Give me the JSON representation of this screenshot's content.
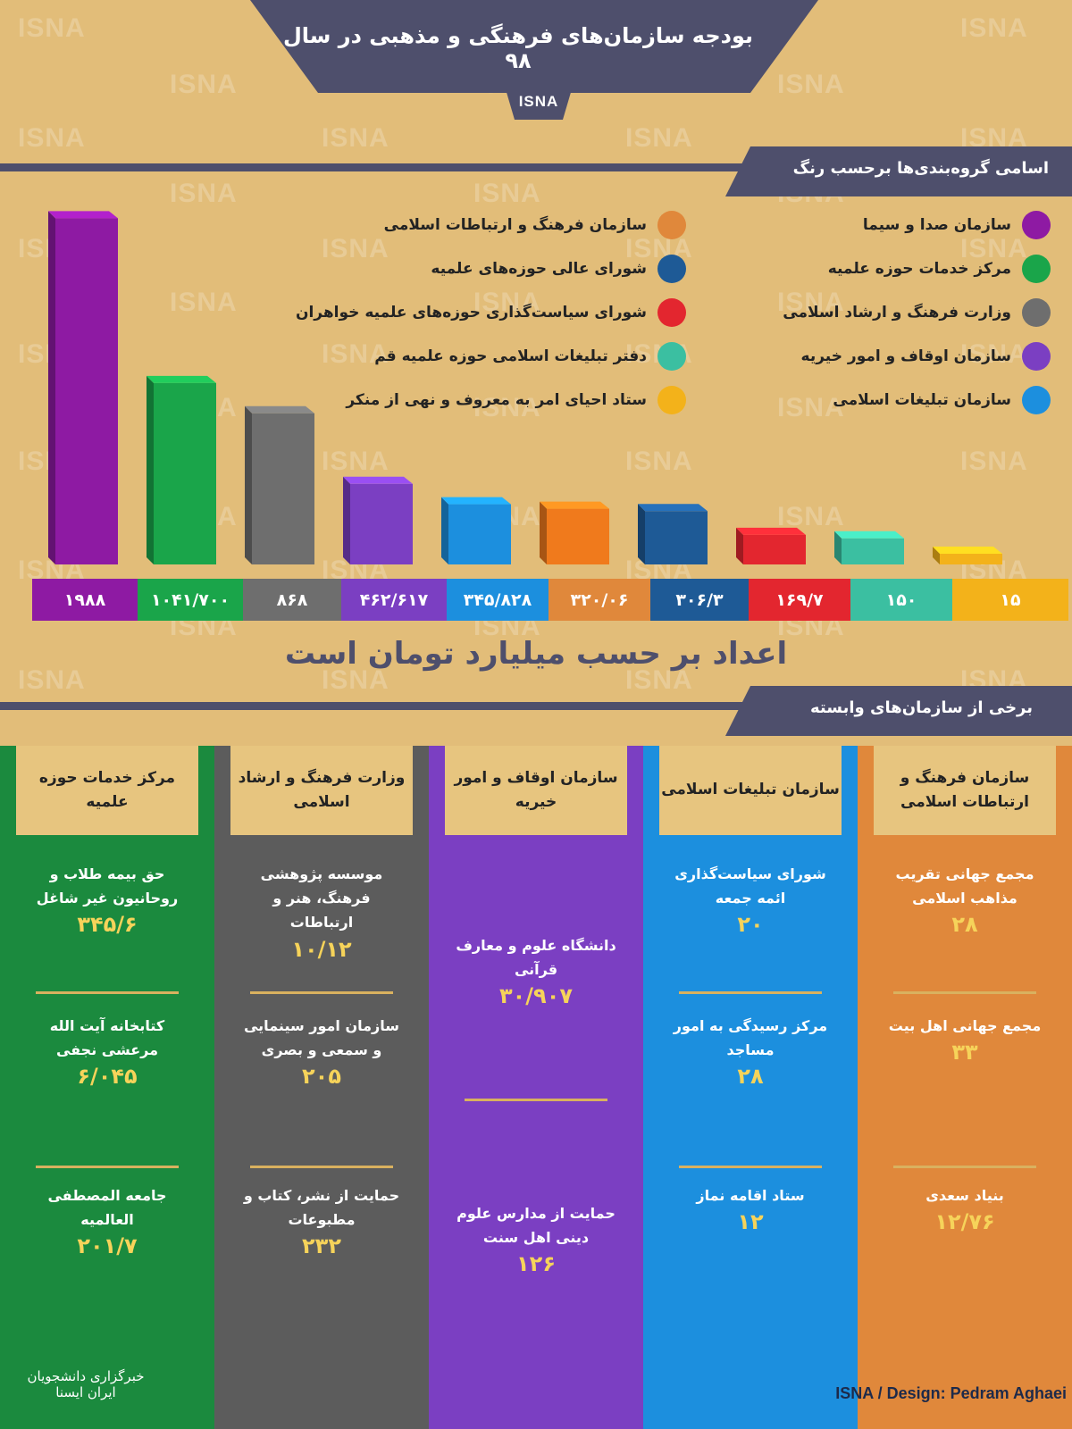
{
  "title": "بودجه سازمان‌های فرهنگی و مذهبی در سال ۹۸",
  "agency": "ISNA",
  "watermark": "ISNA",
  "legend_header": "اسامی گروه‌بندی‌ها برحسب رنگ",
  "legend": [
    {
      "label": "سازمان صدا و سیما",
      "color": "#8e1aa3"
    },
    {
      "label": "مرکز خدمات حوزه علمیه",
      "color": "#1aa54a"
    },
    {
      "label": "وزارت فرهنگ و ارشاد اسلامی",
      "color": "#6e6e6e"
    },
    {
      "label": "سازمان اوقاف و امور خیریه",
      "color": "#7b3fc2"
    },
    {
      "label": "سازمان تبلیغات اسلامی",
      "color": "#1c8fde"
    },
    {
      "label": "سازمان فرهنگ و ارتباطات اسلامی",
      "color": "#e0883b"
    },
    {
      "label": "شورای عالی حوزه‌های علمیه",
      "color": "#1e5a96"
    },
    {
      "label": "شورای سیاست‌گذاری حوزه‌های علمیه خواهران",
      "color": "#e3262f"
    },
    {
      "label": "دفتر تبلیغات اسلامی حوزه علمیه قم",
      "color": "#3bbfa1"
    },
    {
      "label": "ستاد احیای امر به معروف و نهی از منکر",
      "color": "#f3b21a"
    }
  ],
  "chart_data": {
    "type": "bar",
    "categories": [
      "سازمان صدا و سیما",
      "مرکز خدمات حوزه علمیه",
      "وزارت فرهنگ و ارشاد اسلامی",
      "سازمان اوقاف و امور خیریه",
      "سازمان تبلیغات اسلامی",
      "سازمان فرهنگ و ارتباطات اسلامی",
      "شورای عالی حوزه‌های علمیه",
      "شورای سیاست‌گذاری حوزه‌های علمیه خواهران",
      "دفتر تبلیغات اسلامی حوزه علمیه قم",
      "ستاد احیای امر به معروف و نهی از منکر"
    ],
    "values": [
      1988,
      1041.7,
      868,
      462.617,
      345.828,
      320.06,
      306.3,
      169.7,
      150,
      15
    ],
    "value_labels": [
      "۱۹۸۸",
      "۱۰۴۱/۷۰۰",
      "۸۶۸",
      "۴۶۲/۶۱۷",
      "۳۴۵/۸۲۸",
      "۳۲۰/۰۶",
      "۳۰۶/۳",
      "۱۶۹/۷",
      "۱۵۰",
      "۱۵"
    ],
    "colors": [
      "#8e1aa3",
      "#1aa54a",
      "#6e6e6e",
      "#7b3fc2",
      "#1c8fde",
      "#f07a1c",
      "#1e5a96",
      "#e3262f",
      "#3bbfa1",
      "#f3b21a"
    ],
    "strip_colors": [
      "#8e1aa3",
      "#1aa54a",
      "#6e6e6e",
      "#7b3fc2",
      "#1c8fde",
      "#e0883b",
      "#1e5a96",
      "#e3262f",
      "#3bbfa1",
      "#f3b21a"
    ],
    "unit_note": "اعداد بر حسب میلیارد تومان است"
  },
  "sub_header": "برخی از سازمان‌های وابسته",
  "columns": [
    {
      "title": "سازمان فرهنگ و ارتباطات اسلامی",
      "color": "#e0883b",
      "items": [
        {
          "label": "مجمع جهانی تقریب مذاهب اسلامی",
          "value": "۲۸"
        },
        {
          "label": "مجمع جهانی اهل بیت",
          "value": "۳۳"
        },
        {
          "label": "بنیاد سعدی",
          "value": "۱۲/۷۶"
        }
      ]
    },
    {
      "title": "سازمان تبلیغات اسلامی",
      "color": "#1c8fde",
      "items": [
        {
          "label": "شورای سیاست‌گذاری ائمه جمعه",
          "value": "۲۰"
        },
        {
          "label": "مرکز رسیدگی به امور مساجد",
          "value": "۲۸"
        },
        {
          "label": "ستاد اقامه نماز",
          "value": "۱۲"
        }
      ]
    },
    {
      "title": "سازمان اوقاف و امور خیریه",
      "color": "#7b3fc2",
      "items": [
        {
          "label": "دانشگاه علوم و معارف قرآنی",
          "value": "۳۰/۹۰۷"
        },
        {
          "label": "حمایت از مدارس علوم دینی اهل سنت",
          "value": "۱۲۶"
        }
      ]
    },
    {
      "title": "وزارت فرهنگ و ارشاد اسلامی",
      "color": "#5c5c5c",
      "items": [
        {
          "label": "موسسه پژوهشی فرهنگ، هنر و ارتباطات",
          "value": "۱۰/۱۲"
        },
        {
          "label": "سازمان امور سینمایی و سمعی و بصری",
          "value": "۲۰۵"
        },
        {
          "label": "حمایت از نشر، کتاب و مطبوعات",
          "value": "۲۳۲"
        }
      ]
    },
    {
      "title": "مرکز خدمات حوزه علمیه",
      "color": "#1b8a3e",
      "items": [
        {
          "label": "حق بیمه طلاب و روحانیون غیر شاغل",
          "value": "۳۴۵/۶"
        },
        {
          "label": "کتابخانه آیت الله مرعشی نجفی",
          "value": "۶/۰۴۵"
        },
        {
          "label": "جامعه المصطفی العالمیه",
          "value": "۲۰۱/۷"
        }
      ]
    }
  ],
  "logo_text": "خبرگزاری دانشجویان ایران ایسنا",
  "credit": "ISNA / Design: Pedram Aghaei"
}
